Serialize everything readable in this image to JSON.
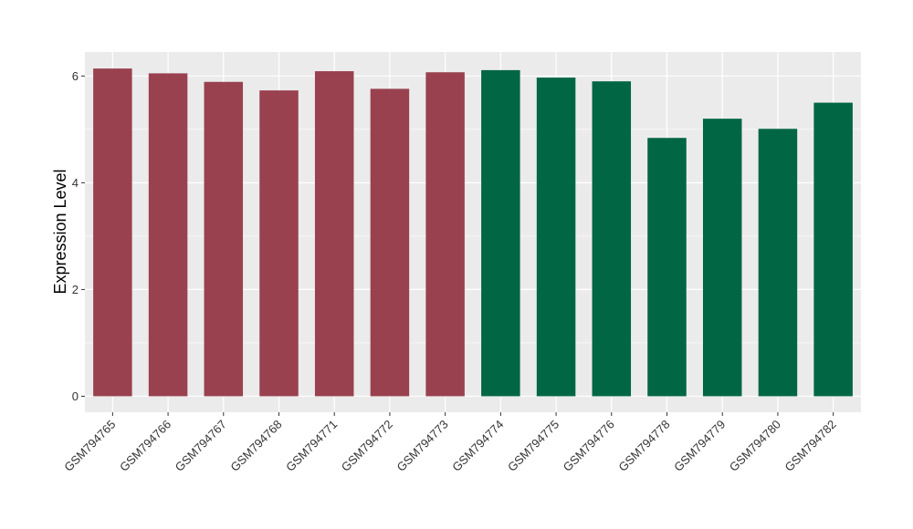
{
  "chart_data": {
    "type": "bar",
    "title": "",
    "xlabel": "",
    "ylabel": "Expression Level",
    "ylim": [
      -0.3,
      6.45
    ],
    "yticks": [
      0,
      2,
      4,
      6
    ],
    "grid": true,
    "legend": "none",
    "categories": [
      "GSM794765",
      "GSM794766",
      "GSM794767",
      "GSM794768",
      "GSM794771",
      "GSM794772",
      "GSM794773",
      "GSM794774",
      "GSM794775",
      "GSM794776",
      "GSM794778",
      "GSM794779",
      "GSM794780",
      "GSM794782"
    ],
    "values": [
      6.14,
      6.05,
      5.89,
      5.73,
      6.09,
      5.76,
      6.07,
      6.11,
      5.97,
      5.9,
      4.84,
      5.2,
      5.01,
      5.5
    ],
    "bar_colors": [
      "#99414f",
      "#99414f",
      "#99414f",
      "#99414f",
      "#99414f",
      "#99414f",
      "#99414f",
      "#006644",
      "#006644",
      "#006644",
      "#006644",
      "#006644",
      "#006644",
      "#006644"
    ],
    "panel_background": "#ebebeb",
    "gridline_color": "#ffffff"
  }
}
